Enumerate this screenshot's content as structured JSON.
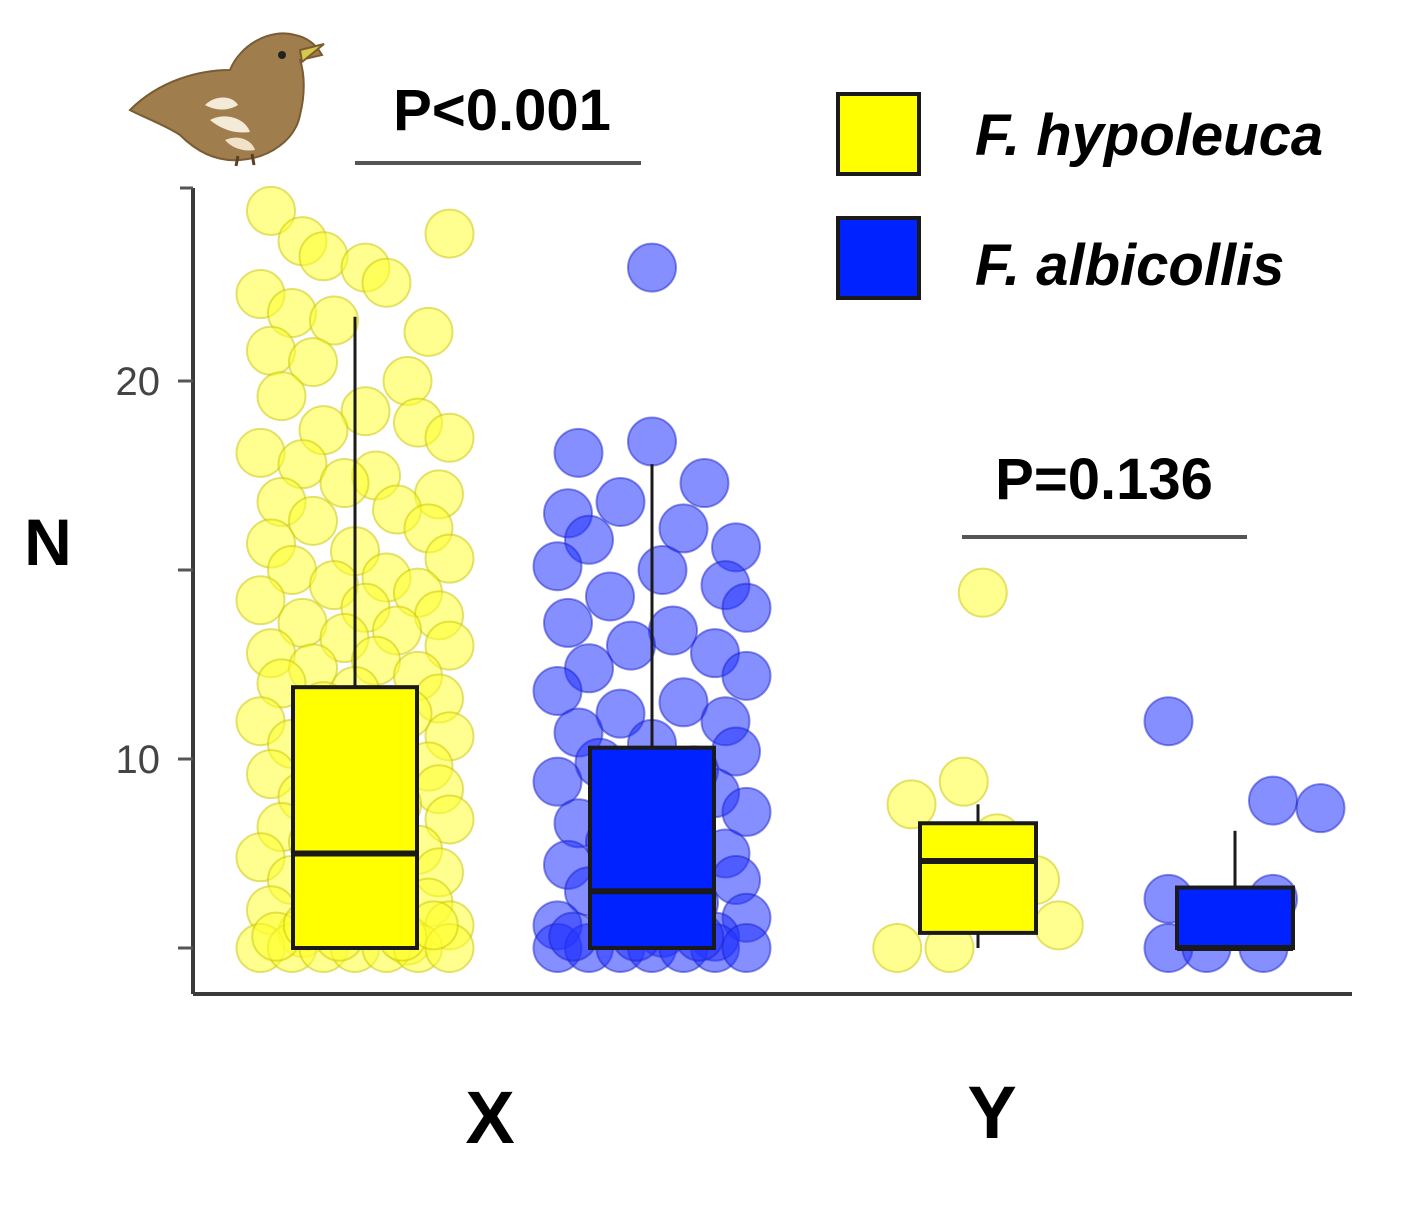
{
  "chart_data": {
    "type": "box",
    "ylabel": "N",
    "xlabel": "",
    "categories": [
      "X",
      "Y"
    ],
    "ylim": [
      4.8,
      26
    ],
    "y_ticks": [
      {
        "value": 5,
        "label": ""
      },
      {
        "value": 10,
        "label": "10"
      },
      {
        "value": 15,
        "label": ""
      },
      {
        "value": 20,
        "label": "20"
      }
    ],
    "legend": {
      "placement": "top-right",
      "items": [
        {
          "name": "F. hypoleuca",
          "color": "#ffff00"
        },
        {
          "name": "F. albicollis",
          "color": "#0022ff"
        }
      ]
    },
    "series": [
      {
        "name": "F. hypoleuca",
        "color": "#ffff00",
        "point_color": "#ffff33",
        "boxes": [
          {
            "category": "X",
            "min": 5,
            "q1": 5,
            "median": 7.5,
            "q3": 11.9,
            "max": 21.7
          },
          {
            "category": "Y",
            "min": 5,
            "q1": 5.4,
            "median": 7.3,
            "q3": 8.3,
            "max": 8.8
          }
        ]
      },
      {
        "name": "F. albicollis",
        "color": "#0022ff",
        "point_color": "#2233ff",
        "boxes": [
          {
            "category": "X",
            "min": 5,
            "q1": 5,
            "median": 6.5,
            "q3": 10.3,
            "max": 17.8
          },
          {
            "category": "Y",
            "min": 5,
            "q1": 5,
            "median": 5,
            "q3": 6.6,
            "max": 8.1
          }
        ]
      }
    ],
    "points": {
      "hypoleuca_X": [
        [
          -0.8,
          24.5
        ],
        [
          -0.5,
          23.7
        ],
        [
          0.9,
          23.9
        ],
        [
          -0.3,
          23.3
        ],
        [
          0.1,
          23.0
        ],
        [
          0.3,
          22.6
        ],
        [
          -0.9,
          22.3
        ],
        [
          -0.6,
          21.8
        ],
        [
          -0.2,
          21.6
        ],
        [
          0.7,
          21.3
        ],
        [
          -0.8,
          20.8
        ],
        [
          -0.4,
          20.5
        ],
        [
          0.5,
          20.0
        ],
        [
          -0.7,
          19.6
        ],
        [
          0.1,
          19.2
        ],
        [
          0.6,
          18.9
        ],
        [
          -0.3,
          18.7
        ],
        [
          0.9,
          18.5
        ],
        [
          -0.9,
          18.1
        ],
        [
          -0.5,
          17.8
        ],
        [
          0.2,
          17.5
        ],
        [
          -0.1,
          17.3
        ],
        [
          0.8,
          17.0
        ],
        [
          -0.7,
          16.8
        ],
        [
          0.4,
          16.6
        ],
        [
          -0.4,
          16.3
        ],
        [
          0.7,
          16.1
        ],
        [
          -0.8,
          15.7
        ],
        [
          0.0,
          15.5
        ],
        [
          0.9,
          15.3
        ],
        [
          -0.6,
          15.0
        ],
        [
          0.3,
          14.8
        ],
        [
          -0.2,
          14.6
        ],
        [
          0.6,
          14.4
        ],
        [
          -0.9,
          14.2
        ],
        [
          0.1,
          14.0
        ],
        [
          0.8,
          13.8
        ],
        [
          -0.5,
          13.6
        ],
        [
          0.4,
          13.4
        ],
        [
          -0.1,
          13.2
        ],
        [
          0.9,
          13.0
        ],
        [
          -0.8,
          12.8
        ],
        [
          0.2,
          12.6
        ],
        [
          -0.4,
          12.4
        ],
        [
          0.6,
          12.2
        ],
        [
          -0.7,
          12.0
        ],
        [
          0.0,
          11.8
        ],
        [
          0.8,
          11.6
        ],
        [
          -0.3,
          11.4
        ],
        [
          0.5,
          11.2
        ],
        [
          -0.9,
          11.0
        ],
        [
          0.2,
          10.8
        ],
        [
          0.9,
          10.6
        ],
        [
          -0.6,
          10.4
        ],
        [
          0.3,
          10.2
        ],
        [
          -0.2,
          10.0
        ],
        [
          0.7,
          9.8
        ],
        [
          -0.8,
          9.6
        ],
        [
          0.1,
          9.4
        ],
        [
          0.8,
          9.2
        ],
        [
          -0.5,
          9.0
        ],
        [
          0.4,
          8.8
        ],
        [
          -0.1,
          8.6
        ],
        [
          0.9,
          8.4
        ],
        [
          -0.7,
          8.2
        ],
        [
          0.2,
          8.0
        ],
        [
          -0.4,
          7.8
        ],
        [
          0.6,
          7.6
        ],
        [
          -0.9,
          7.4
        ],
        [
          0.0,
          7.2
        ],
        [
          0.8,
          7.0
        ],
        [
          -0.6,
          6.8
        ],
        [
          0.3,
          6.6
        ],
        [
          -0.3,
          6.4
        ],
        [
          0.7,
          6.2
        ],
        [
          -0.8,
          6.0
        ],
        [
          0.1,
          5.8
        ],
        [
          0.9,
          5.6
        ],
        [
          -0.5,
          5.4
        ],
        [
          0.5,
          5.2
        ],
        [
          -0.9,
          5.0
        ],
        [
          -0.6,
          5.0
        ],
        [
          -0.3,
          5.0
        ],
        [
          0.0,
          5.0
        ],
        [
          0.3,
          5.0
        ],
        [
          0.6,
          5.0
        ],
        [
          0.9,
          5.0
        ],
        [
          -0.75,
          5.3
        ],
        [
          -0.15,
          5.3
        ],
        [
          0.45,
          5.3
        ],
        [
          -0.45,
          5.6
        ],
        [
          0.15,
          5.6
        ],
        [
          0.75,
          5.6
        ]
      ],
      "albicollis_X": [
        [
          0.0,
          23.0
        ],
        [
          0.0,
          18.4
        ],
        [
          -0.7,
          18.1
        ],
        [
          0.5,
          17.3
        ],
        [
          -0.8,
          16.5
        ],
        [
          -0.3,
          16.8
        ],
        [
          0.3,
          16.1
        ],
        [
          -0.6,
          15.8
        ],
        [
          0.8,
          15.6
        ],
        [
          -0.9,
          15.1
        ],
        [
          0.1,
          15.0
        ],
        [
          0.7,
          14.6
        ],
        [
          -0.4,
          14.3
        ],
        [
          0.9,
          14.0
        ],
        [
          -0.8,
          13.6
        ],
        [
          0.2,
          13.4
        ],
        [
          -0.2,
          13.0
        ],
        [
          0.6,
          12.8
        ],
        [
          -0.6,
          12.4
        ],
        [
          0.9,
          12.2
        ],
        [
          -0.9,
          11.8
        ],
        [
          0.3,
          11.5
        ],
        [
          -0.3,
          11.2
        ],
        [
          0.7,
          11.0
        ],
        [
          -0.7,
          10.7
        ],
        [
          0.0,
          10.4
        ],
        [
          0.8,
          10.2
        ],
        [
          -0.5,
          9.9
        ],
        [
          0.4,
          9.7
        ],
        [
          -0.9,
          9.4
        ],
        [
          0.6,
          9.1
        ],
        [
          -0.2,
          8.9
        ],
        [
          0.9,
          8.6
        ],
        [
          -0.7,
          8.3
        ],
        [
          0.2,
          8.1
        ],
        [
          -0.4,
          7.8
        ],
        [
          0.7,
          7.5
        ],
        [
          -0.8,
          7.2
        ],
        [
          0.0,
          7.0
        ],
        [
          0.8,
          6.8
        ],
        [
          -0.6,
          6.5
        ],
        [
          0.4,
          6.2
        ],
        [
          -0.2,
          6.0
        ],
        [
          0.9,
          5.8
        ],
        [
          -0.9,
          5.6
        ],
        [
          0.1,
          5.4
        ],
        [
          0.6,
          5.3
        ],
        [
          -0.9,
          5.0
        ],
        [
          -0.6,
          5.0
        ],
        [
          -0.3,
          5.0
        ],
        [
          0.0,
          5.0
        ],
        [
          0.3,
          5.0
        ],
        [
          0.6,
          5.0
        ],
        [
          0.9,
          5.0
        ],
        [
          -0.75,
          5.3
        ],
        [
          -0.15,
          5.3
        ],
        [
          0.45,
          5.3
        ]
      ],
      "hypoleuca_Y": [
        [
          0.05,
          14.4
        ],
        [
          -0.15,
          9.4
        ],
        [
          -0.7,
          8.8
        ],
        [
          0.2,
          7.9
        ],
        [
          0.6,
          6.8
        ],
        [
          0.85,
          5.6
        ],
        [
          -0.85,
          5.0
        ],
        [
          -0.3,
          5.0
        ]
      ],
      "albicollis_Y": [
        [
          -0.7,
          11.0
        ],
        [
          0.4,
          8.9
        ],
        [
          0.9,
          8.7
        ],
        [
          -0.7,
          6.3
        ],
        [
          0.4,
          6.3
        ],
        [
          -0.7,
          5.0
        ],
        [
          -0.3,
          5.0
        ],
        [
          0.3,
          5.0
        ]
      ]
    },
    "comparisons": [
      {
        "category": "X",
        "label": "P<0.001"
      },
      {
        "category": "Y",
        "label": "P=0.136"
      }
    ]
  },
  "icons": {
    "bird": "flycatcher-bird-icon"
  }
}
